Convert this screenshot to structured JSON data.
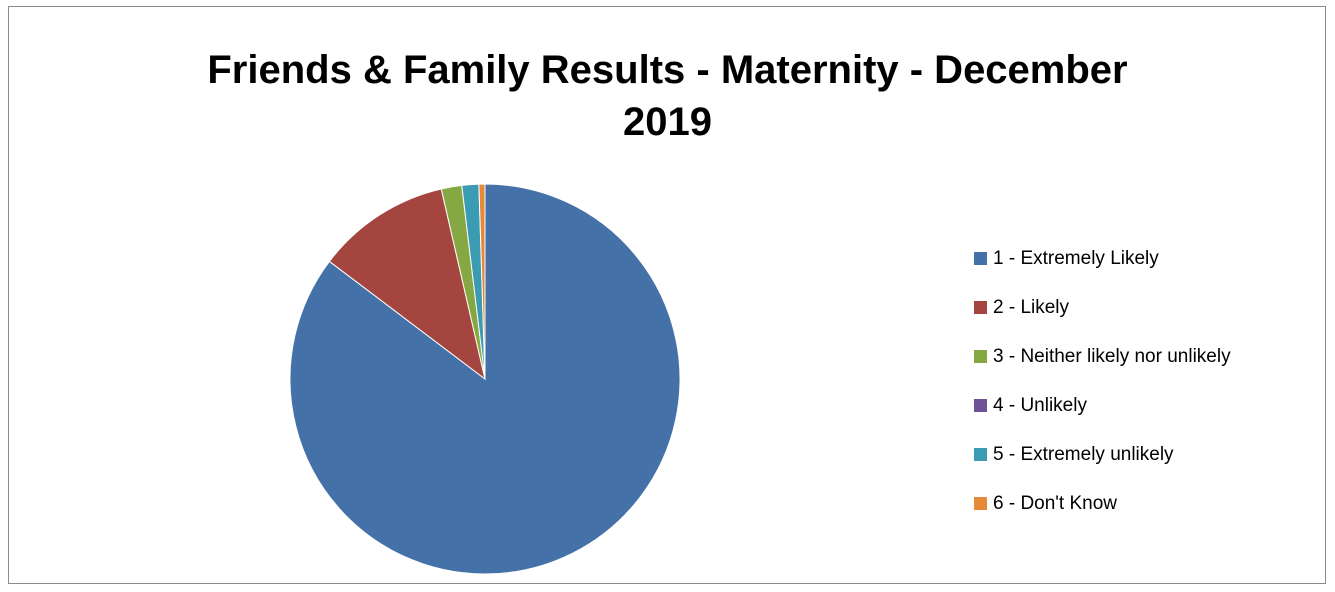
{
  "chart_data": {
    "type": "pie",
    "title_lines": [
      "Friends & Family Results - Maternity - December",
      "2019"
    ],
    "categories": [
      "1 - Extremely Likely",
      "2 - Likely",
      "3 - Neither likely nor unlikely",
      "4 - Unlikely",
      "5 - Extremely unlikely",
      "6 - Don't Know"
    ],
    "values": [
      85.3,
      11.1,
      1.7,
      0.0,
      1.4,
      0.5
    ],
    "colors": [
      "#4472a8",
      "#a5453f",
      "#86a843",
      "#6e5496",
      "#3b9bb2",
      "#e68a3a"
    ],
    "legend_position": "right"
  }
}
